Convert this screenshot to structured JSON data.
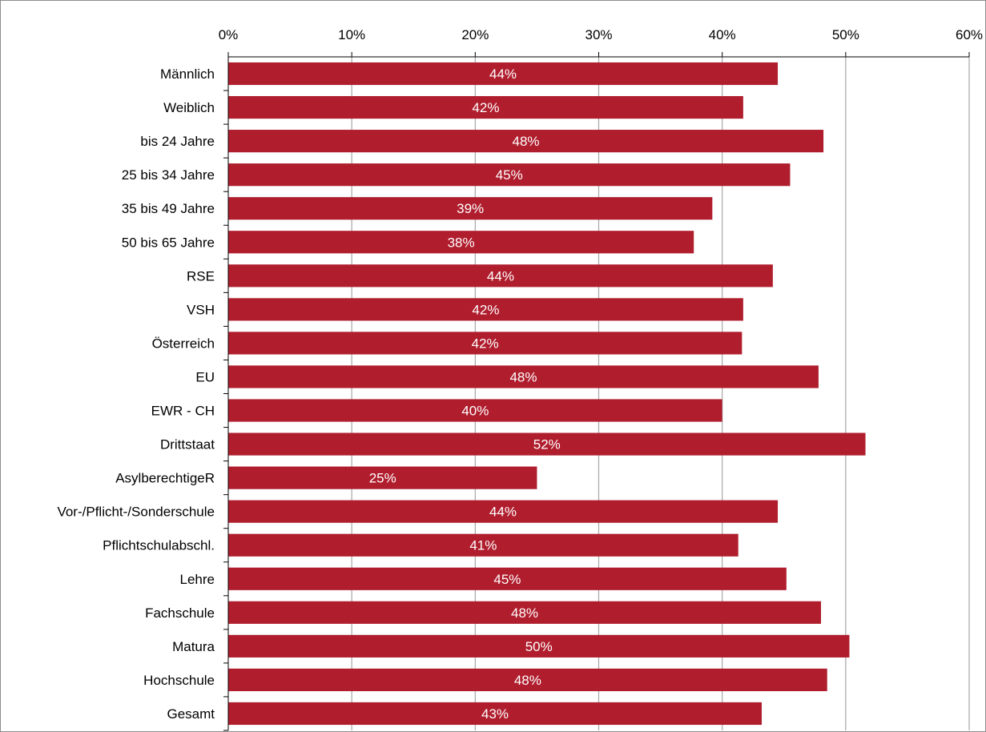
{
  "chart_data": {
    "type": "bar",
    "orientation": "horizontal",
    "categories": [
      "Männlich",
      "Weiblich",
      "bis 24 Jahre",
      "25 bis 34 Jahre",
      "35 bis 49 Jahre",
      "50 bis 65 Jahre",
      "RSE",
      "VSH",
      "Österreich",
      "EU",
      "EWR - CH",
      "Drittstaat",
      "AsylberechtigeR",
      "Vor-/Pflicht-/Sonderschule",
      "Pflichtschulabschl.",
      "Lehre",
      "Fachschule",
      "Matura",
      "Hochschule",
      "Gesamt"
    ],
    "values": [
      44.5,
      41.7,
      48.2,
      45.5,
      39.2,
      37.7,
      44.1,
      41.7,
      41.6,
      47.8,
      40.0,
      51.6,
      25.0,
      44.5,
      41.3,
      45.2,
      48.0,
      50.3,
      48.5,
      43.2
    ],
    "data_labels": [
      "44%",
      "42%",
      "48%",
      "45%",
      "39%",
      "38%",
      "44%",
      "42%",
      "42%",
      "48%",
      "40%",
      "52%",
      "25%",
      "44%",
      "41%",
      "45%",
      "48%",
      "50%",
      "48%",
      "43%"
    ],
    "xlim": [
      0,
      60
    ],
    "x_ticks": [
      0,
      10,
      20,
      30,
      40,
      50,
      60
    ],
    "x_tick_labels": [
      "0%",
      "10%",
      "20%",
      "30%",
      "40%",
      "50%",
      "60%"
    ],
    "x_axis_position": "top",
    "grid": true,
    "legend": "none",
    "title": "",
    "xlabel": "",
    "ylabel": "",
    "colors": {
      "bar": "#b01e2e",
      "gridline": "#a6a6a6",
      "axis": "#000000",
      "frame": "#8c8c8c",
      "data_label_text": "#ffffff"
    }
  }
}
